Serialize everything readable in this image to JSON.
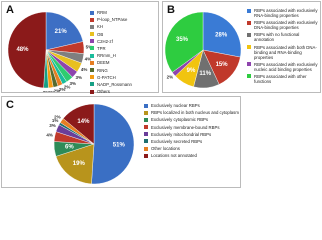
{
  "chart_data": [
    {
      "type": "pie",
      "title": "A",
      "categories": [
        "RRM",
        "P-loop_NTPase",
        "KH",
        "OB",
        "C2H2-zf",
        "TPR",
        "RRmm_H",
        "DEEM",
        "RING",
        "G-PATCH",
        "NADP_Rossmann",
        "Others"
      ],
      "values": [
        21,
        5,
        4,
        4,
        3,
        3,
        2,
        2,
        2,
        2,
        2,
        48
      ],
      "value_labels": [
        "21%",
        "5%",
        "4%",
        "4%",
        "3%",
        "3%",
        "2%",
        "2%",
        "2%",
        "2%",
        "2%",
        "48%"
      ],
      "colors": [
        "#3d6fc4",
        "#c0392b",
        "#7f7f7f",
        "#e8c020",
        "#8e44ad",
        "#2ecc71",
        "#1abc9c",
        "#e67e22",
        "#556b2f",
        "#f39c12",
        "#16a085",
        "#8b1a1a"
      ]
    },
    {
      "type": "pie",
      "title": "B",
      "categories": [
        "RBPs associated with exclusively RNA-binding properties",
        "RBPs associated with exclusively DNA-binding properties",
        "RBPs with no functional annotation",
        "RBPs associated with both DNA-binding and RNA-binding properties",
        "RBPs associated with exclusively nucleic acid binding properties",
        "RBPs associated with other functions"
      ],
      "values": [
        28,
        15,
        11,
        9,
        2,
        35
      ],
      "value_labels": [
        "28%",
        "15%",
        "11%",
        "9%",
        "2%",
        "35%"
      ],
      "colors": [
        "#3a7bd5",
        "#c0392b",
        "#707070",
        "#f1c40f",
        "#8e44ad",
        "#2ecc40"
      ]
    },
    {
      "type": "pie",
      "title": "C",
      "categories": [
        "Exclusively nuclear RBPs",
        "RBPs localized in both nucleus and cytoplasm",
        "Exclusively cytoplasmic RBPs",
        "Exclusively membrane-bound RBPs",
        "Exclusively mitochondrial RBPs",
        "Exclusively secreted RBPs",
        "Other locations",
        "Locations not annotated"
      ],
      "values": [
        51,
        19,
        6,
        4,
        3,
        1,
        2,
        14
      ],
      "value_labels": [
        "51%",
        "19%",
        "6%",
        "4%",
        "3%",
        "1%",
        "2%",
        "14%"
      ],
      "colors": [
        "#3a6fc4",
        "#b8941c",
        "#2e8b57",
        "#c0392b",
        "#6a3d9a",
        "#1f6f6f",
        "#e67e22",
        "#8b1a1a"
      ]
    }
  ]
}
